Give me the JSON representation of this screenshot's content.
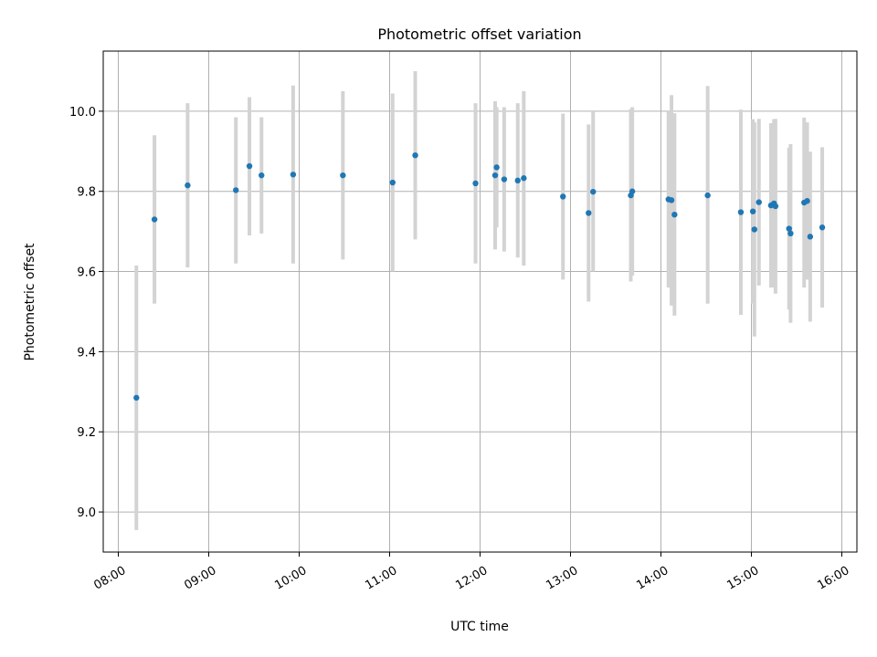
{
  "chart_data": {
    "type": "scatter",
    "title": "Photometric offset variation",
    "xlabel": "UTC time",
    "ylabel": "Photometric offset",
    "xlim": [
      "07:50",
      "16:10"
    ],
    "ylim": [
      8.9,
      10.15
    ],
    "x_ticks": [
      "08:00",
      "09:00",
      "10:00",
      "11:00",
      "12:00",
      "13:00",
      "14:00",
      "15:00",
      "16:00"
    ],
    "y_ticks": [
      9.0,
      9.2,
      9.4,
      9.6,
      9.8,
      10.0
    ],
    "grid": true,
    "colors": {
      "point": "#1f77b4",
      "errorbar": "#d3d3d3"
    },
    "points": [
      {
        "t": "08:12",
        "y": 9.285,
        "lo": 8.955,
        "hi": 9.615
      },
      {
        "t": "08:24",
        "y": 9.73,
        "lo": 9.52,
        "hi": 9.94
      },
      {
        "t": "08:46",
        "y": 9.815,
        "lo": 9.61,
        "hi": 10.02
      },
      {
        "t": "09:18",
        "y": 9.803,
        "lo": 9.62,
        "hi": 9.985
      },
      {
        "t": "09:27",
        "y": 9.863,
        "lo": 9.69,
        "hi": 10.035
      },
      {
        "t": "09:35",
        "y": 9.84,
        "lo": 9.695,
        "hi": 9.985
      },
      {
        "t": "09:56",
        "y": 9.842,
        "lo": 9.62,
        "hi": 10.064
      },
      {
        "t": "10:29",
        "y": 9.84,
        "lo": 9.63,
        "hi": 10.05
      },
      {
        "t": "11:02",
        "y": 9.822,
        "lo": 9.6,
        "hi": 10.044
      },
      {
        "t": "11:17",
        "y": 9.89,
        "lo": 9.68,
        "hi": 10.1
      },
      {
        "t": "11:57",
        "y": 9.82,
        "lo": 9.62,
        "hi": 10.02
      },
      {
        "t": "12:10",
        "y": 9.84,
        "lo": 9.655,
        "hi": 10.025
      },
      {
        "t": "12:11",
        "y": 9.86,
        "lo": 9.71,
        "hi": 10.01
      },
      {
        "t": "12:16",
        "y": 9.83,
        "lo": 9.65,
        "hi": 10.01
      },
      {
        "t": "12:25",
        "y": 9.827,
        "lo": 9.635,
        "hi": 10.02
      },
      {
        "t": "12:29",
        "y": 9.833,
        "lo": 9.615,
        "hi": 10.05
      },
      {
        "t": "12:55",
        "y": 9.787,
        "lo": 9.58,
        "hi": 9.994
      },
      {
        "t": "13:12",
        "y": 9.746,
        "lo": 9.525,
        "hi": 9.967
      },
      {
        "t": "13:15",
        "y": 9.799,
        "lo": 9.6,
        "hi": 9.998
      },
      {
        "t": "13:40",
        "y": 9.79,
        "lo": 9.575,
        "hi": 10.005
      },
      {
        "t": "13:41",
        "y": 9.8,
        "lo": 9.59,
        "hi": 10.01
      },
      {
        "t": "14:05",
        "y": 9.78,
        "lo": 9.56,
        "hi": 10.0
      },
      {
        "t": "14:07",
        "y": 9.778,
        "lo": 9.515,
        "hi": 10.04
      },
      {
        "t": "14:09",
        "y": 9.742,
        "lo": 9.49,
        "hi": 9.995
      },
      {
        "t": "14:31",
        "y": 9.79,
        "lo": 9.52,
        "hi": 10.063
      },
      {
        "t": "14:53",
        "y": 9.748,
        "lo": 9.492,
        "hi": 10.004
      },
      {
        "t": "15:01",
        "y": 9.75,
        "lo": 9.52,
        "hi": 9.98
      },
      {
        "t": "15:02",
        "y": 9.705,
        "lo": 9.438,
        "hi": 9.972
      },
      {
        "t": "15:05",
        "y": 9.773,
        "lo": 9.565,
        "hi": 9.981
      },
      {
        "t": "15:13",
        "y": 9.765,
        "lo": 9.56,
        "hi": 9.97
      },
      {
        "t": "15:15",
        "y": 9.77,
        "lo": 9.56,
        "hi": 9.98
      },
      {
        "t": "15:16",
        "y": 9.763,
        "lo": 9.545,
        "hi": 9.981
      },
      {
        "t": "15:25",
        "y": 9.707,
        "lo": 9.505,
        "hi": 9.909
      },
      {
        "t": "15:26",
        "y": 9.695,
        "lo": 9.472,
        "hi": 9.918
      },
      {
        "t": "15:35",
        "y": 9.772,
        "lo": 9.56,
        "hi": 9.984
      },
      {
        "t": "15:37",
        "y": 9.776,
        "lo": 9.58,
        "hi": 9.972
      },
      {
        "t": "15:39",
        "y": 9.687,
        "lo": 9.475,
        "hi": 9.899
      },
      {
        "t": "15:47",
        "y": 9.71,
        "lo": 9.51,
        "hi": 9.91
      }
    ]
  }
}
